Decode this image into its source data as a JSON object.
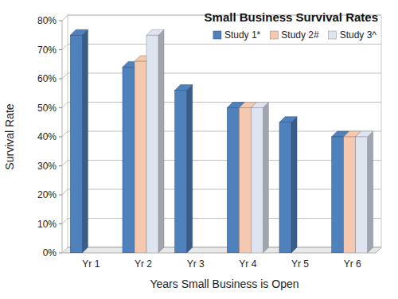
{
  "chart_data": {
    "type": "bar",
    "title": "Small Business Survival Rates",
    "x_label": "Years Small Business is Open",
    "y_label": "Survival Rate",
    "categories": [
      "Yr 1",
      "Yr 2",
      "Yr 3",
      "Yr 4",
      "Yr 5",
      "Yr 6"
    ],
    "series": [
      {
        "name": "Study 1*",
        "color": "#4f81bd",
        "values": [
          75,
          64,
          56,
          50,
          45,
          40
        ]
      },
      {
        "name": "Study 2#",
        "color": "#f5c9b0",
        "values": [
          null,
          66,
          null,
          50,
          null,
          40
        ]
      },
      {
        "name": "Study 3^",
        "color": "#dfe5f0",
        "values": [
          null,
          75,
          null,
          50,
          null,
          40
        ]
      }
    ],
    "ylim": [
      0,
      80
    ],
    "yticks": [
      {
        "value": 0,
        "label": "0%"
      },
      {
        "value": 10,
        "label": "10%"
      },
      {
        "value": 20,
        "label": "20%"
      },
      {
        "value": 30,
        "label": "30%"
      },
      {
        "value": 40,
        "label": "40%"
      },
      {
        "value": 50,
        "label": "50%"
      },
      {
        "value": 60,
        "label": "60%"
      },
      {
        "value": 70,
        "label": "70%"
      },
      {
        "value": 80,
        "label": "80%"
      }
    ],
    "grid": true,
    "legend": "top-right"
  }
}
